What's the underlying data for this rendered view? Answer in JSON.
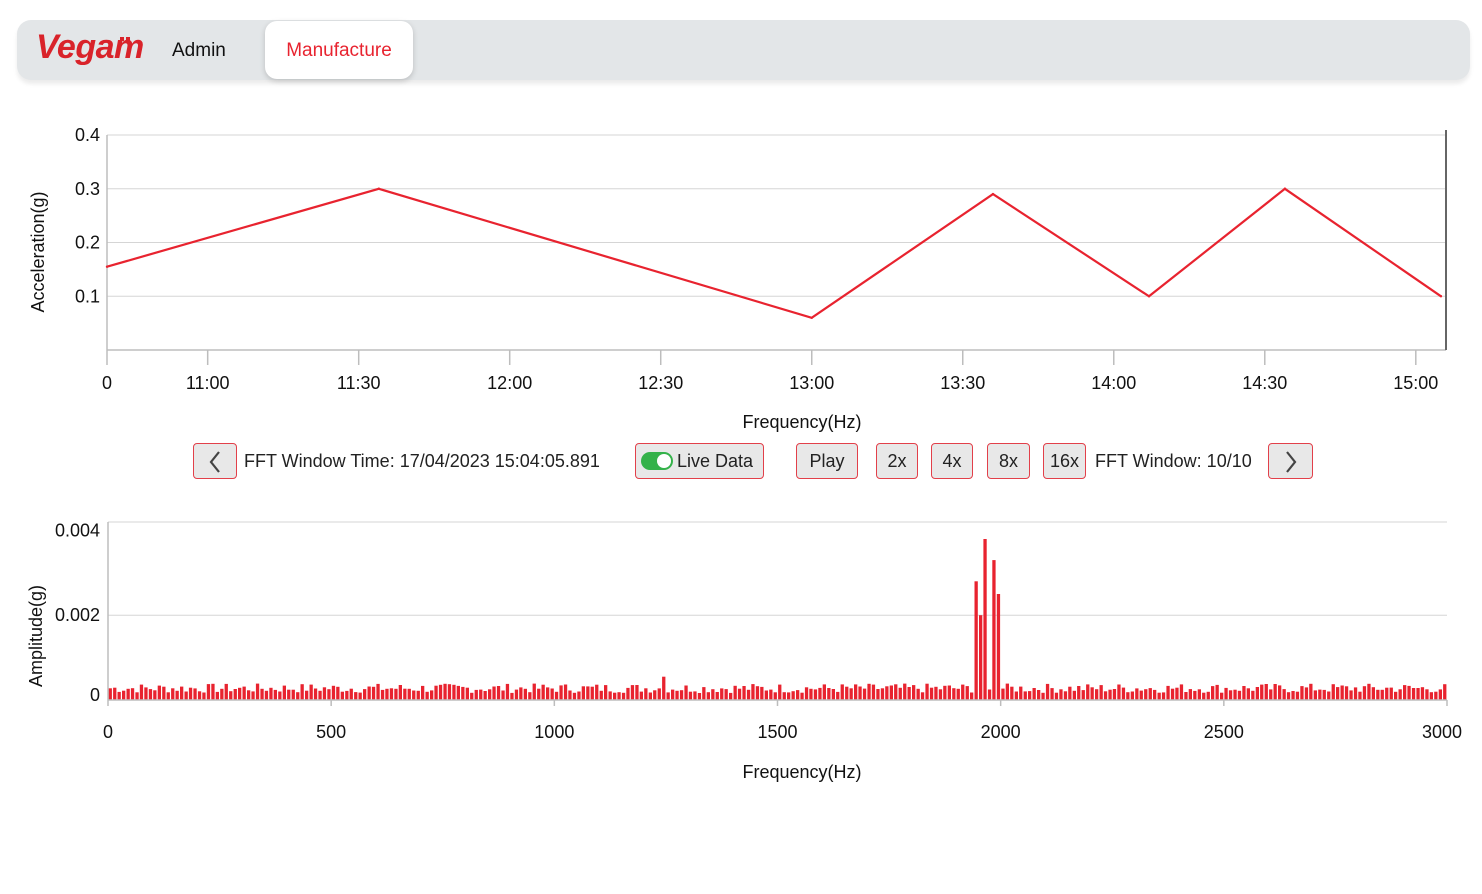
{
  "header": {
    "logo_text": "Vegam",
    "nav": [
      {
        "label": "Admin",
        "active": false
      },
      {
        "label": "Manufacture",
        "active": true
      }
    ]
  },
  "controls": {
    "fft_window_time": "FFT Window Time: 17/04/2023 15:04:05.891",
    "live_data_label": "Live Data",
    "live_data_on": true,
    "play_label": "Play",
    "speeds": [
      "2x",
      "4x",
      "8x",
      "16x"
    ],
    "fft_window": "FFT Window: 10/10",
    "prev_icon": "chevron-left-icon",
    "next_icon": "chevron-right-icon"
  },
  "colors": {
    "accent": "#e8232f",
    "brand": "#d9232a",
    "toggle_on": "#34b24a"
  },
  "chart_data": [
    {
      "type": "line",
      "x_tick_labels": [
        "0",
        "11:00",
        "11:30",
        "12:00",
        "12:30",
        "13:00",
        "13:30",
        "14:00",
        "14:30",
        "15:00"
      ],
      "x": [
        "10:40",
        "11:34",
        "13:00",
        "13:36",
        "14:07",
        "14:34",
        "15:05"
      ],
      "series": [
        {
          "values": [
            0.155,
            0.3,
            0.06,
            0.29,
            0.1,
            0.3,
            0.1
          ]
        }
      ],
      "xlabel": "Frequency(Hz)",
      "ylabel": "Acceleration(g)",
      "y_ticks": [
        "0.1",
        "0.2",
        "0.3",
        "0.4"
      ],
      "ylim": [
        0,
        0.4
      ],
      "grid": true
    },
    {
      "type": "bar",
      "xlabel": "Frequency(Hz)",
      "ylabel": "Amplitude(g)",
      "x_ticks": [
        "0",
        "500",
        "1000",
        "1500",
        "2000",
        "2500",
        "3000"
      ],
      "y_ticks": [
        "0",
        "0.002",
        "0.004"
      ],
      "xlim": [
        0,
        3000
      ],
      "ylim": [
        0,
        0.0042
      ],
      "grid": true,
      "baseline_amplitude": 0.0003,
      "peaks": [
        {
          "x": 1240,
          "value": 0.00055
        },
        {
          "x": 1940,
          "value": 0.0028
        },
        {
          "x": 1952,
          "value": 0.002
        },
        {
          "x": 1964,
          "value": 0.0038
        },
        {
          "x": 1976,
          "value": 0.0033
        },
        {
          "x": 1988,
          "value": 0.0025
        }
      ]
    }
  ]
}
